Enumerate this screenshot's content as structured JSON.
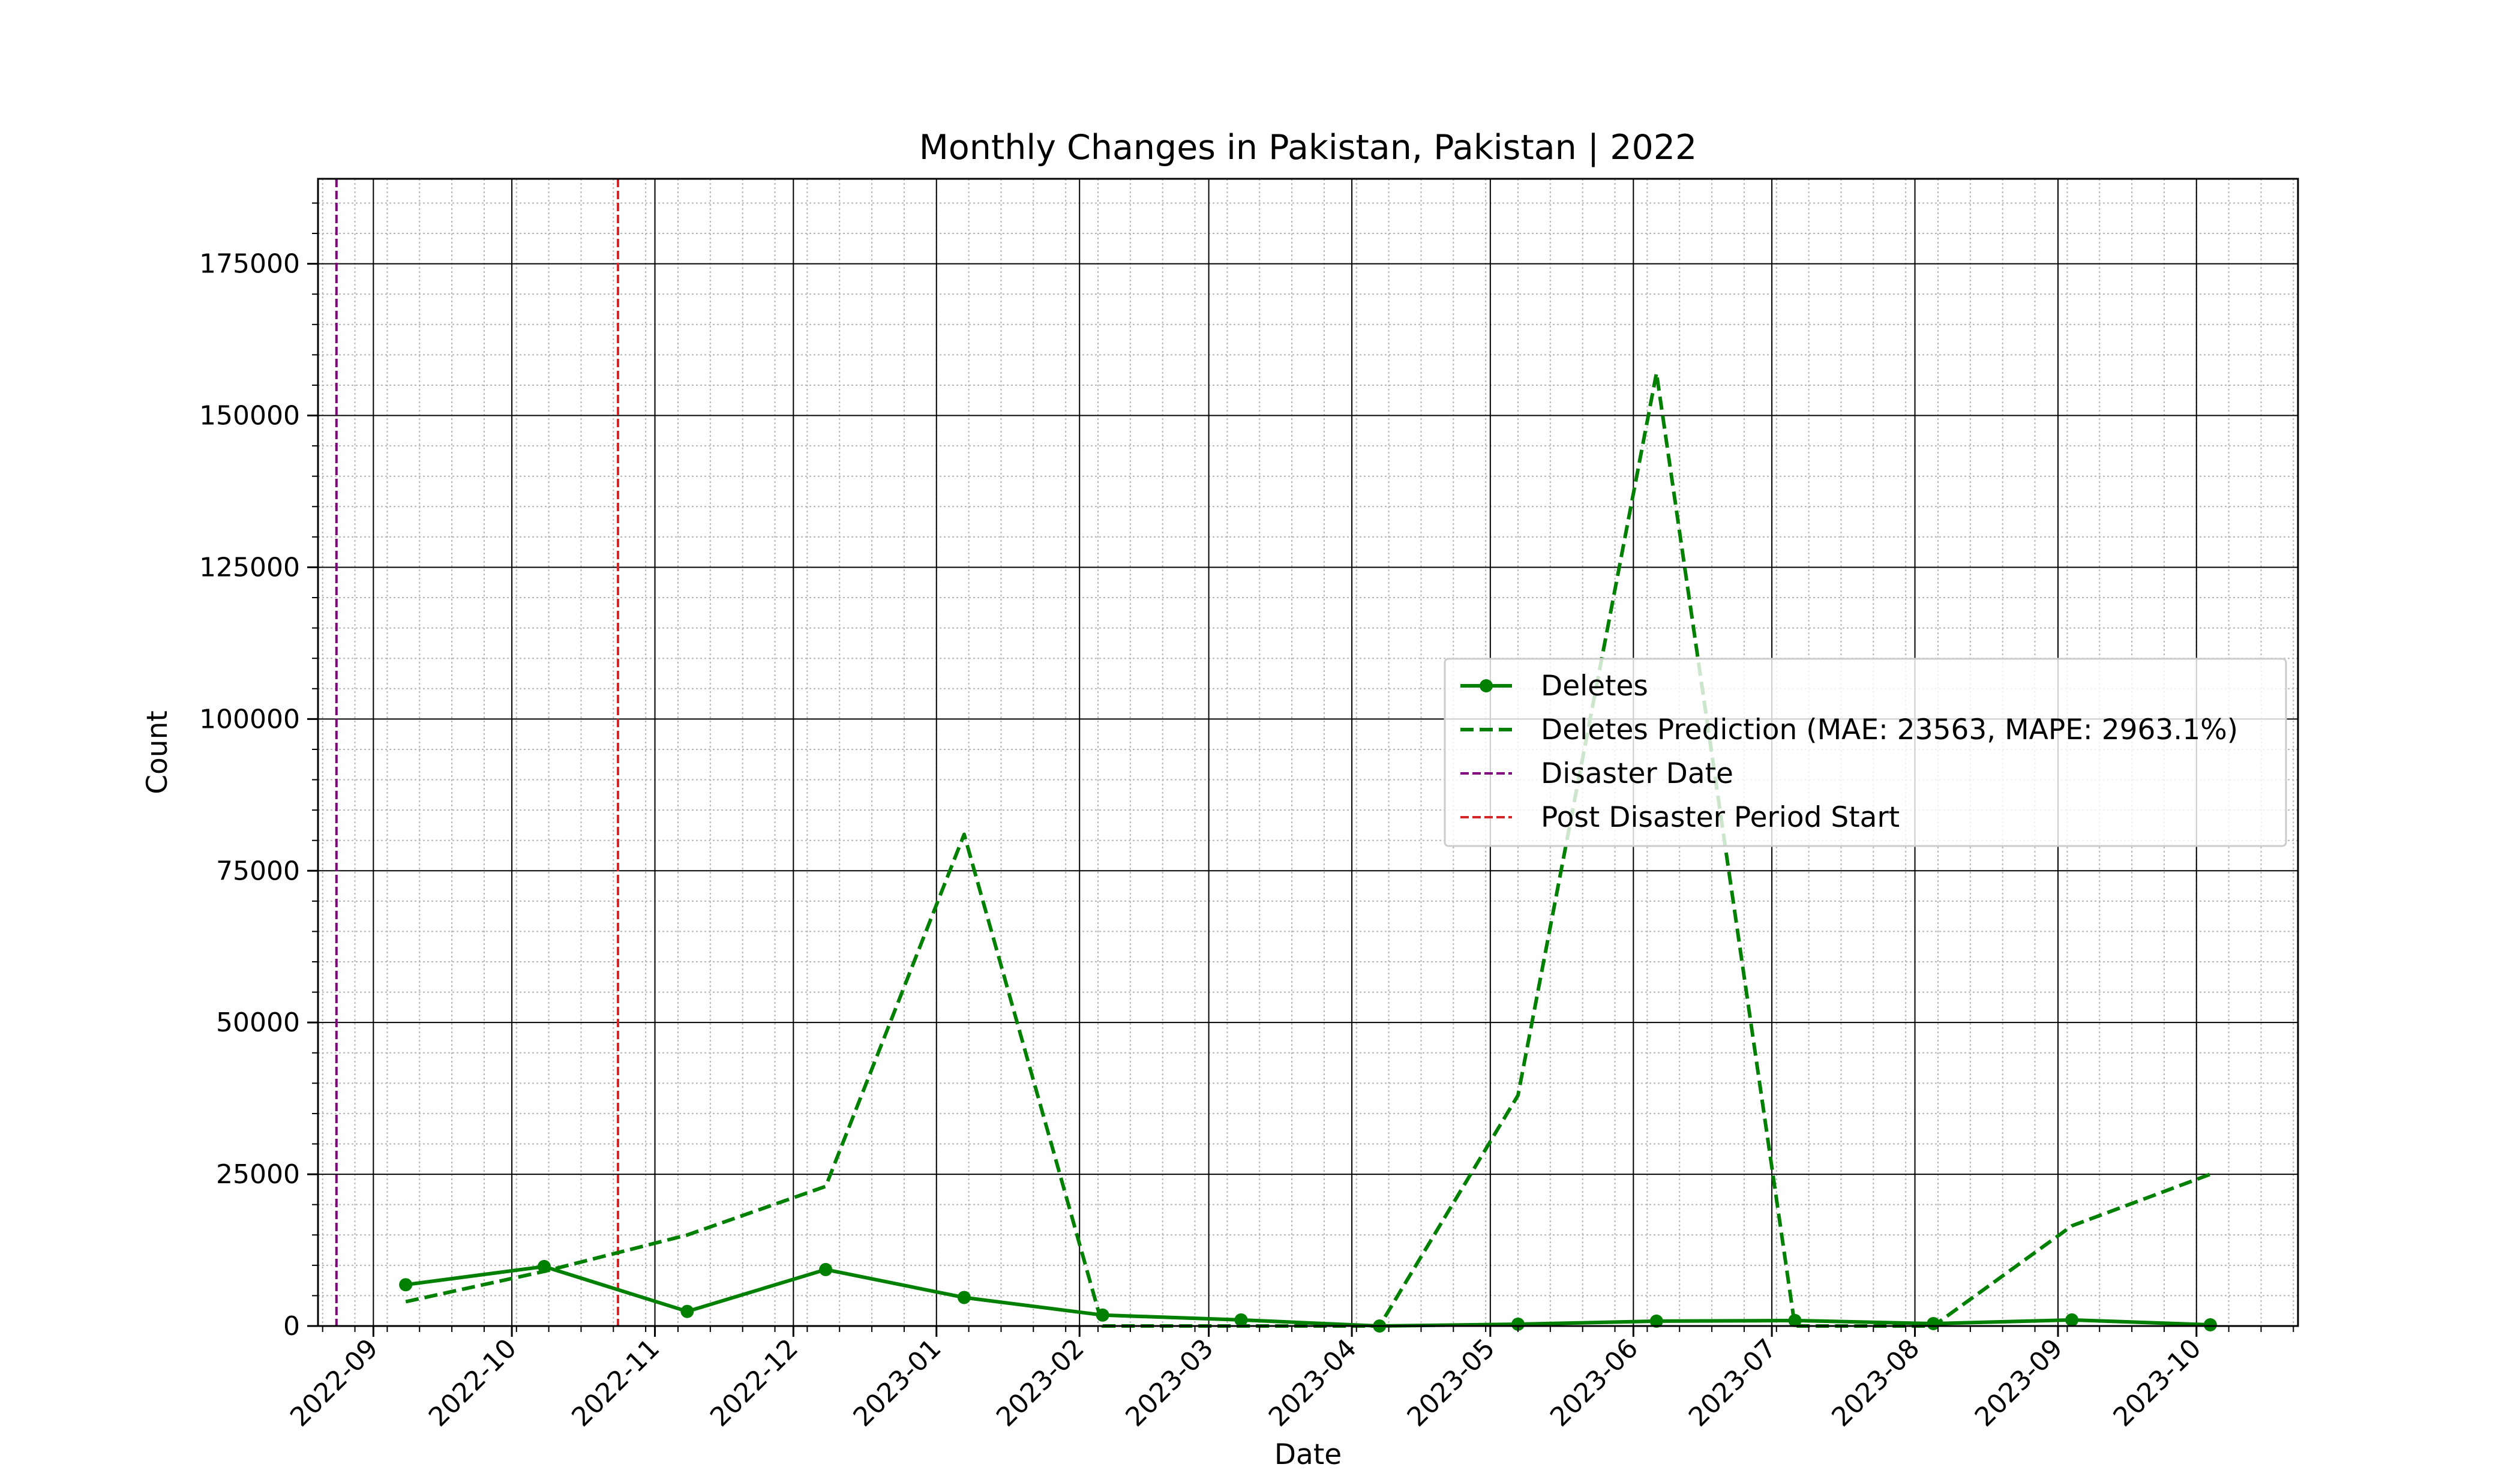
{
  "chart_data": {
    "type": "line",
    "title": "Monthly Changes in Pakistan, Pakistan | 2022",
    "xlabel": "Date",
    "ylabel": "Count",
    "x_axis": "date",
    "xlim": [
      "2022-08-20",
      "2023-10-23"
    ],
    "ylim": [
      0,
      189000
    ],
    "grid": "major and minor",
    "legend_position": "right",
    "x_ticks": [
      "2022-09",
      "2022-10",
      "2022-11",
      "2022-12",
      "2023-01",
      "2023-02",
      "2023-03",
      "2023-04",
      "2023-05",
      "2023-06",
      "2023-07",
      "2023-08",
      "2023-09",
      "2023-10"
    ],
    "y_ticks": [
      0,
      25000,
      50000,
      75000,
      100000,
      125000,
      150000,
      175000
    ],
    "series": [
      {
        "name": "Deletes",
        "style": "solid",
        "marker": "circle",
        "color": "#008000",
        "x": [
          "2022-09-08",
          "2022-10-08",
          "2022-11-08",
          "2022-12-08",
          "2023-01-07",
          "2023-02-06",
          "2023-03-08",
          "2023-04-07",
          "2023-05-07",
          "2023-06-06",
          "2023-07-06",
          "2023-08-05",
          "2023-09-04",
          "2023-10-04"
        ],
        "y": [
          6800,
          9800,
          2400,
          9300,
          4700,
          1800,
          1000,
          0,
          300,
          800,
          900,
          400,
          1000,
          200
        ]
      },
      {
        "name": "Deletes Prediction (MAE: 23563, MAPE: 2963.1%)",
        "style": "dashed",
        "color": "#008000",
        "x": [
          "2022-09-08",
          "2022-10-08",
          "2022-11-08",
          "2022-12-08",
          "2023-01-07",
          "2023-02-06",
          "2023-03-08",
          "2023-04-07",
          "2023-05-07",
          "2023-06-06",
          "2023-07-06",
          "2023-08-05",
          "2023-09-04",
          "2023-10-04"
        ],
        "y": [
          4000,
          9000,
          15000,
          23000,
          81000,
          0,
          0,
          0,
          38000,
          157000,
          0,
          0,
          16500,
          25000
        ]
      }
    ],
    "vlines": [
      {
        "name": "Disaster Date",
        "x": "2022-08-24",
        "style": "dashed",
        "color": "#800080"
      },
      {
        "name": "Post Disaster Period Start",
        "x": "2022-10-24",
        "style": "dashed",
        "color": "#d62728"
      }
    ]
  }
}
